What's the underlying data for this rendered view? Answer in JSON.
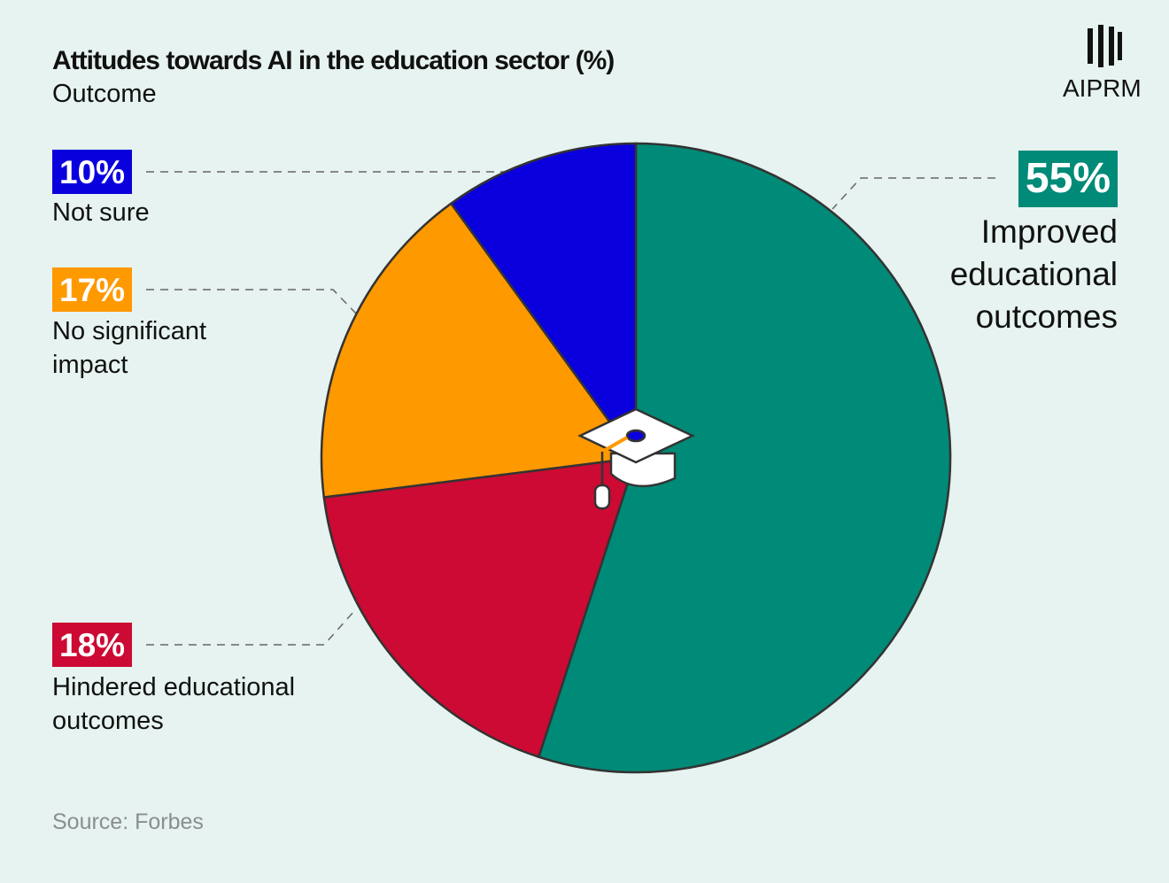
{
  "chart_data": {
    "type": "pie",
    "title": "Attitudes towards AI in the education sector (%)",
    "subtitle": "Outcome",
    "categories": [
      "Improved educational outcomes",
      "Hindered educational outcomes",
      "No significant impact",
      "Not sure"
    ],
    "values": [
      55,
      18,
      17,
      10
    ],
    "value_labels": [
      "55%",
      "18%",
      "17%",
      "10%"
    ],
    "colors": [
      "#008a78",
      "#cc0a33",
      "#ff9900",
      "#0a00dd"
    ],
    "source": "Source: Forbes",
    "logo": "AIPRM"
  }
}
